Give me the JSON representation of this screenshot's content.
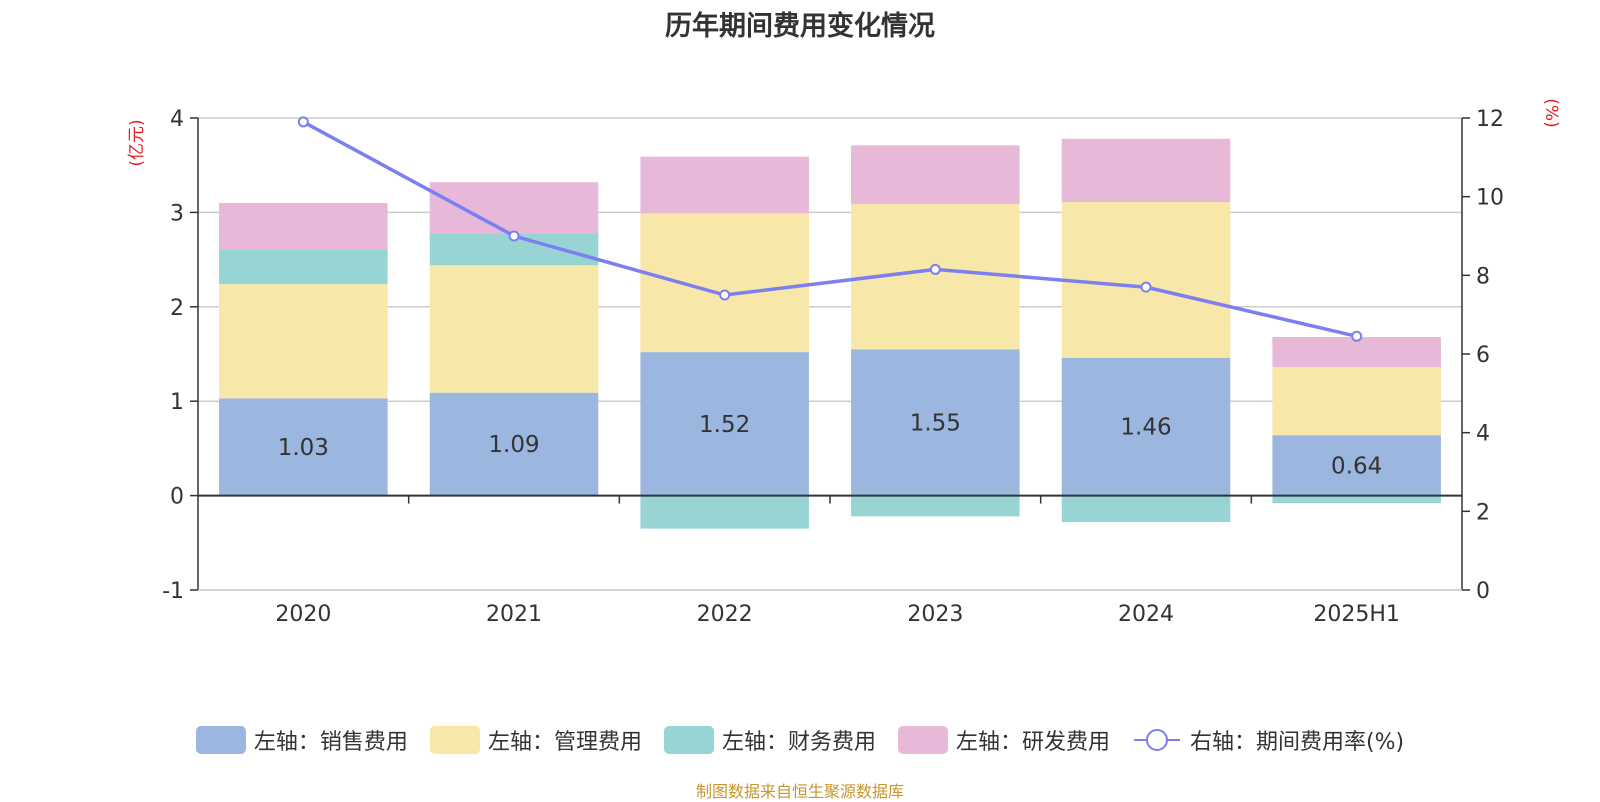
{
  "chart_data": {
    "type": "bar",
    "title": "历年期间费用变化情况",
    "categories": [
      "2020",
      "2021",
      "2022",
      "2023",
      "2024",
      "2025H1"
    ],
    "left_axis": {
      "unit_label": "(亿元)",
      "ylim": [
        -1,
        4
      ],
      "ticks": [
        "-1",
        "0",
        "1",
        "2",
        "3",
        "4"
      ]
    },
    "right_axis": {
      "unit_label": "(%)",
      "ylim": [
        0,
        12
      ],
      "ticks": [
        "0",
        "2",
        "4",
        "6",
        "8",
        "10",
        "12"
      ]
    },
    "series": [
      {
        "name": "左轴：销售费用",
        "axis": "left",
        "kind": "bar",
        "color": "#9bb7e0",
        "values": [
          1.03,
          1.09,
          1.52,
          1.55,
          1.46,
          0.64
        ],
        "show_labels": true
      },
      {
        "name": "左轴：管理费用",
        "axis": "left",
        "kind": "bar",
        "color": "#f7e7a8",
        "values": [
          1.21,
          1.35,
          1.47,
          1.54,
          1.65,
          0.72
        ],
        "show_labels": false
      },
      {
        "name": "左轴：财务费用",
        "axis": "left",
        "kind": "bar",
        "color": "#98d4d4",
        "values": [
          0.37,
          0.34,
          -0.35,
          -0.22,
          -0.28,
          -0.08
        ],
        "show_labels": false
      },
      {
        "name": "左轴：研发费用",
        "axis": "left",
        "kind": "bar",
        "color": "#e8b8d8",
        "values": [
          0.49,
          0.54,
          0.6,
          0.62,
          0.67,
          0.32
        ],
        "show_labels": false
      },
      {
        "name": "右轴：期间费用率(%)",
        "axis": "right",
        "kind": "line",
        "color": "#7b7ff0",
        "values": [
          11.9,
          9.0,
          7.5,
          8.15,
          7.7,
          6.45
        ]
      }
    ],
    "grid": true,
    "legend_position": "bottom"
  },
  "source_text": "制图数据来自恒生聚源数据库",
  "colors": {
    "title": "#333333",
    "unit_label": "#e02020",
    "source": "#c8962e",
    "axis": "#333333",
    "grid": "#cccccc"
  }
}
